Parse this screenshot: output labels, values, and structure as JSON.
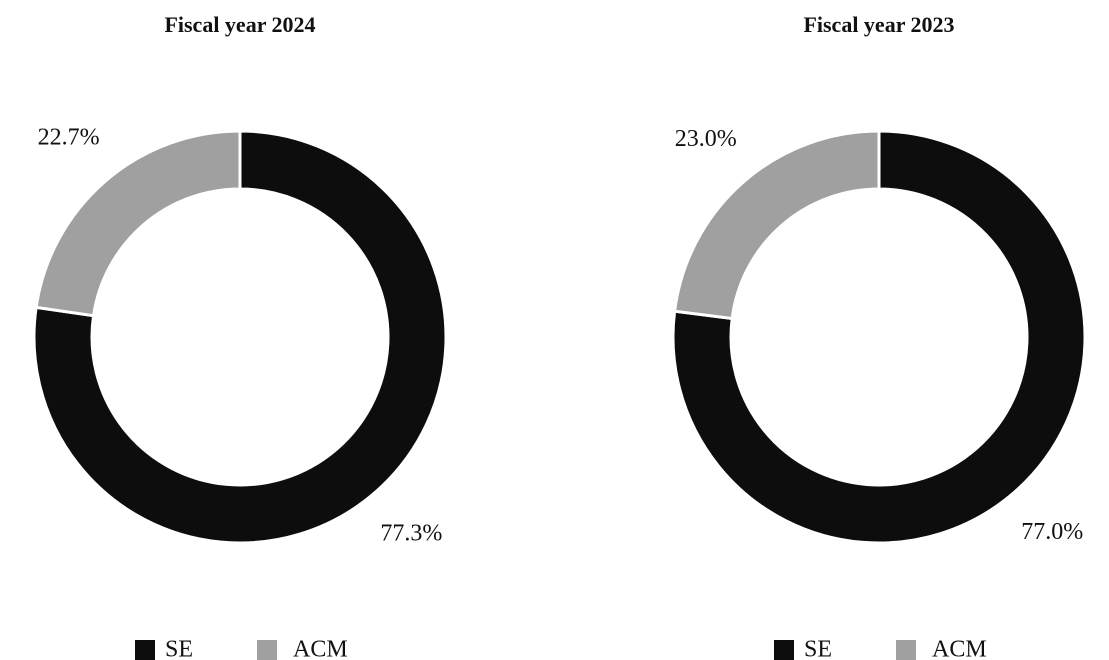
{
  "chart_data": [
    {
      "type": "donut",
      "title": "Fiscal year 2024",
      "categories": [
        "SE",
        "ACM"
      ],
      "values": [
        77.3,
        22.7
      ],
      "value_labels": [
        "77.3%",
        "22.7%"
      ],
      "colors": [
        "#0d0d0d",
        "#a0a0a0"
      ]
    },
    {
      "type": "donut",
      "title": "Fiscal year 2023",
      "categories": [
        "SE",
        "ACM"
      ],
      "values": [
        77.0,
        23.0
      ],
      "value_labels": [
        "77.0%",
        "23.0%"
      ],
      "colors": [
        "#0d0d0d",
        "#a0a0a0"
      ]
    }
  ]
}
